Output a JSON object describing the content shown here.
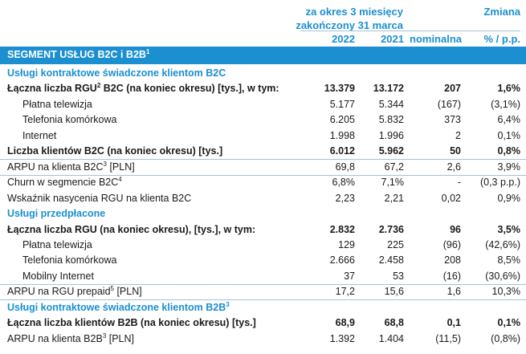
{
  "header": {
    "period_line1": "za okres 3 miesięcy",
    "period_line2": "zakończony 31 marca",
    "change": "Zmiana",
    "col_2022": "2022",
    "col_2021": "2021",
    "col_nominal": "nominalna",
    "col_pct": "% / p.p."
  },
  "segment": {
    "label": "SEGMENT USŁUG B2C i B2B",
    "sup": "1"
  },
  "rows": [
    {
      "style": "sec",
      "label": "Usługi kontraktowe świadczone klientom B2C"
    },
    {
      "style": "bold",
      "label": "Łączna liczba RGU",
      "sup": "2",
      "label2": " B2C (na koniec okresu) [tys.], w tym:",
      "v1": "13.379",
      "v2": "13.172",
      "v3": "207",
      "v4": "1,6%"
    },
    {
      "style": "indent",
      "label": "Płatna telewizja",
      "v1": "5.177",
      "v2": "5.344",
      "v3": "(167)",
      "v4": "(3,1%)"
    },
    {
      "style": "indent",
      "label": "Telefonia komórkowa",
      "v1": "6.205",
      "v2": "5.832",
      "v3": "373",
      "v4": "6,4%"
    },
    {
      "style": "indent",
      "label": "Internet",
      "v1": "1.998",
      "v2": "1.996",
      "v3": "2",
      "v4": "0,1%"
    },
    {
      "style": "bold line",
      "label": "Liczba klientów B2C (na koniec okresu) [tys.]",
      "v1": "6.012",
      "v2": "5.962",
      "v3": "50",
      "v4": "0,8%"
    },
    {
      "style": "line",
      "label": "ARPU na klienta B2C",
      "sup": "3",
      "label2": " [PLN]",
      "v1": "69,8",
      "v2": "67,2",
      "v3": "2,6",
      "v4": "3,9%"
    },
    {
      "style": "",
      "label": "Churn w segmencie B2C",
      "sup": "4",
      "v1": "6,8%",
      "v2": "7,1%",
      "v3": "-",
      "v4": "(0,3 p.p.)"
    },
    {
      "style": "",
      "label": "Wskaźnik nasycenia RGU na klienta B2C",
      "v1": "2,23",
      "v2": "2,21",
      "v3": "0,02",
      "v4": "0,9%"
    },
    {
      "style": "sec",
      "label": "Usługi przedpłacone"
    },
    {
      "style": "bold",
      "label": "Łączna liczba RGU (na koniec okresu), [tys.], w tym:",
      "v1": "2.832",
      "v2": "2.736",
      "v3": "96",
      "v4": "3,5%"
    },
    {
      "style": "indent",
      "label": "Płatna telewizja",
      "v1": "129",
      "v2": "225",
      "v3": "(96)",
      "v4": "(42,6%)"
    },
    {
      "style": "indent",
      "label": "Telefonia komórkowa",
      "v1": "2.666",
      "v2": "2.458",
      "v3": "208",
      "v4": "8,5%"
    },
    {
      "style": "indent line",
      "label": "Mobilny Internet",
      "v1": "37",
      "v2": "53",
      "v3": "(16)",
      "v4": "(30,6%)"
    },
    {
      "style": "line",
      "label": "ARPU na RGU prepaid",
      "sup": "5",
      "label2": " [PLN]",
      "v1": "17,2",
      "v2": "15,6",
      "v3": "1,6",
      "v4": "10,3%"
    },
    {
      "style": "sec",
      "label": "Usługi kontraktowe świadczone klientom B2B",
      "sup": "3"
    },
    {
      "style": "bold",
      "label": "Łączna liczba klientów B2B (na koniec okresu) [tys.]",
      "v1": "68,9",
      "v2": "68,8",
      "v3": "0,1",
      "v4": "0,1%"
    },
    {
      "style": "",
      "label": "ARPU na klienta B2B",
      "sup": "3",
      "label2": " [PLN]",
      "v1": "1.392",
      "v2": "1.404",
      "v3": "(11,5)",
      "v4": "(0,8%)"
    }
  ]
}
